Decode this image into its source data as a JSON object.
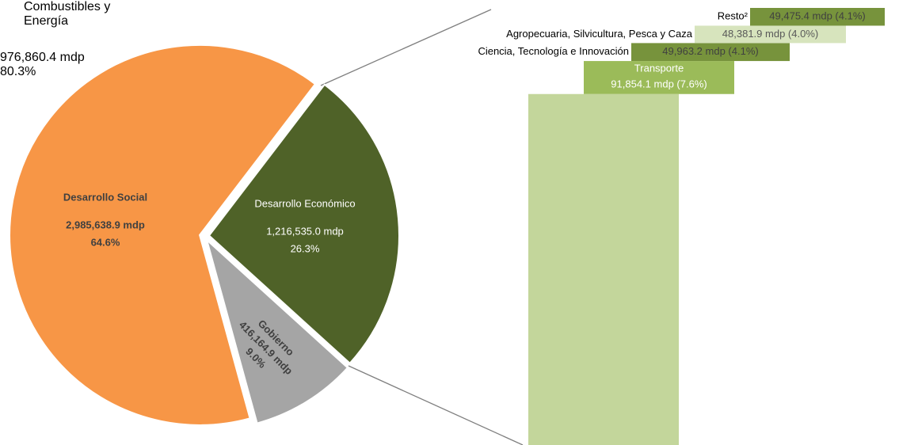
{
  "chart_data": [
    {
      "type": "pie",
      "categories": [
        "Desarrollo Social",
        "Desarrollo Económico",
        "Gobierno"
      ],
      "values": [
        2985638.9,
        1216535.0,
        416164.9
      ],
      "value_labels": [
        "2,985,638.9 mdp",
        "1,216,535.0 mdp",
        "416,164.9 mdp"
      ],
      "shares": [
        64.6,
        26.3,
        9.0
      ],
      "share_labels": [
        "64.6%",
        "26.3%",
        "9.0%"
      ],
      "colors": [
        "#f79646",
        "#4f6228",
        "#a5a5a5"
      ]
    },
    {
      "type": "stacked-bar",
      "categories": [
        "Combustibles y Energía",
        "Transporte",
        "Ciencia, Tecnología e Innovación",
        "Agropecuaria, Silvicultura, Pesca y Caza",
        "Resto²"
      ],
      "values": [
        976860.4,
        91854.1,
        49963.2,
        48381.9,
        49475.4
      ],
      "shares": [
        80.3,
        7.6,
        4.1,
        4.0,
        4.1
      ],
      "value_labels": [
        [
          "976,860.4 mdp",
          "80.3%"
        ],
        [
          "91,854.1 mdp (7.6%)"
        ],
        [
          "49,963.2 mdp (4.1%)"
        ],
        [
          "48,381.9 mdp (4.0%)"
        ],
        [
          "49,475.4 mdp (4.1%)"
        ]
      ],
      "colors": [
        "#c3d69b",
        "#9bbb59",
        "#77933c",
        "#d7e4bd",
        "#77933c"
      ]
    }
  ]
}
